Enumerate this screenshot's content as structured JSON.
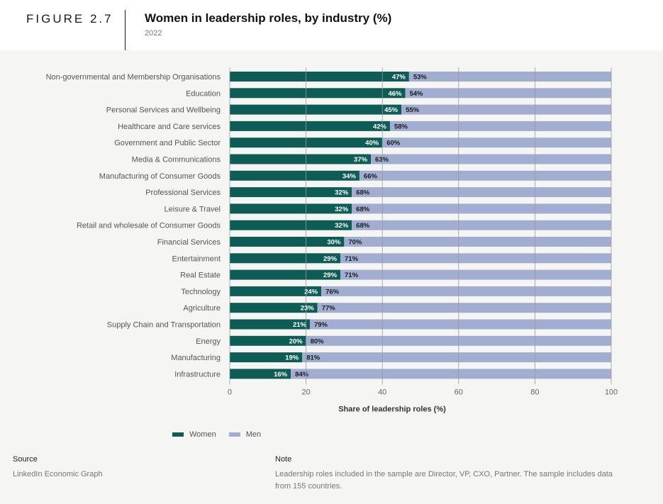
{
  "header": {
    "figure_label": "FIGURE 2.7",
    "title": "Women in leadership roles, by industry (%)",
    "subtitle": "2022"
  },
  "colors": {
    "women": "#0d5c55",
    "men": "#a1aed2",
    "grid": "#9a9a9a"
  },
  "chart_data": {
    "type": "bar",
    "orientation": "horizontal",
    "stacked": true,
    "title": "Women in leadership roles, by industry (%)",
    "xlabel": "Share of leadership roles (%)",
    "ylabel": "",
    "xlim": [
      0,
      100
    ],
    "xticks": [
      0,
      20,
      40,
      60,
      80,
      100
    ],
    "grid": true,
    "legend_position": "bottom-left",
    "categories": [
      "Non-governmental and Membership Organisations",
      "Education",
      "Personal Services and Wellbeing",
      "Healthcare and Care services",
      "Government and Public Sector",
      "Media & Communications",
      "Manufacturing of Consumer Goods",
      "Professional Services",
      "Leisure & Travel",
      "Retail and wholesale of Consumer Goods",
      "Financial Services",
      "Entertainment",
      "Real Estate",
      "Technology",
      "Agriculture",
      "Supply Chain and Transportation",
      "Energy",
      "Manufacturing",
      "Infrastructure"
    ],
    "series": [
      {
        "name": "Women",
        "values": [
          47,
          46,
          45,
          42,
          40,
          37,
          34,
          32,
          32,
          32,
          30,
          29,
          29,
          24,
          23,
          21,
          20,
          19,
          16
        ]
      },
      {
        "name": "Men",
        "values": [
          53,
          54,
          55,
          58,
          60,
          63,
          66,
          68,
          68,
          68,
          70,
          71,
          71,
          76,
          77,
          79,
          80,
          81,
          84
        ]
      }
    ]
  },
  "legend": {
    "women_label": "Women",
    "men_label": "Men"
  },
  "footer": {
    "source_label": "Source",
    "source_text": "LinkedIn Economic Graph",
    "note_label": "Note",
    "note_line1": "Leadership roles included in the sample are Director, VP, CXO, Partner. The sample includes data",
    "note_line2": "from 155 countries."
  }
}
